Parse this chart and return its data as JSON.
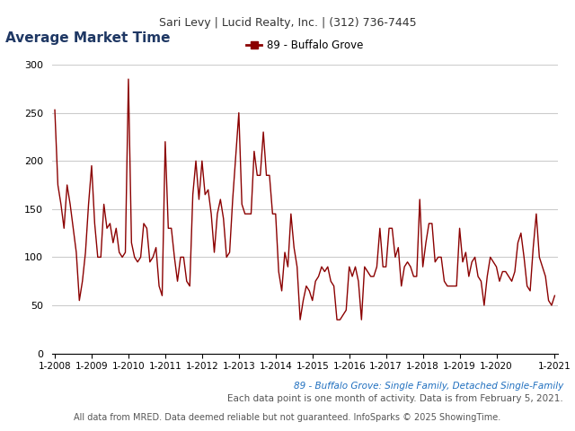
{
  "title": "Average Market Time",
  "header": "Sari Levy | Lucid Realty, Inc. | (312) 736-7445",
  "legend_label": "89 - Buffalo Grove",
  "subtitle1": "89 - Buffalo Grove: Single Family, Detached Single-Family",
  "subtitle2": "Each data point is one month of activity. Data is from February 5, 2021.",
  "footer": "All data from MRED. Data deemed reliable but not guaranteed. InfoSparks © 2025 ShowingTime.",
  "line_color": "#8B0000",
  "title_color": "#1F3864",
  "subtitle1_color": "#1F6FBF",
  "header_bg": "#E8E8E8",
  "ylim": [
    0,
    300
  ],
  "yticks": [
    0,
    50,
    100,
    150,
    200,
    250,
    300
  ],
  "xtick_labels": [
    "1-2008",
    "1-2009",
    "1-2010",
    "1-2011",
    "1-2012",
    "1-2013",
    "1-2014",
    "1-2015",
    "1-2016",
    "1-2017",
    "1-2018",
    "1-2019",
    "1-2020",
    "1-2021"
  ],
  "values": [
    253,
    175,
    155,
    130,
    175,
    155,
    130,
    105,
    55,
    75,
    105,
    155,
    195,
    135,
    100,
    100,
    155,
    130,
    135,
    115,
    130,
    105,
    100,
    105,
    285,
    115,
    100,
    95,
    100,
    135,
    130,
    95,
    100,
    110,
    70,
    60,
    220,
    130,
    130,
    100,
    75,
    100,
    100,
    75,
    70,
    165,
    200,
    160,
    200,
    165,
    170,
    145,
    105,
    145,
    160,
    140,
    100,
    105,
    160,
    205,
    250,
    155,
    145,
    145,
    145,
    210,
    185,
    185,
    230,
    185,
    185,
    145,
    145,
    85,
    65,
    105,
    90,
    145,
    110,
    90,
    35,
    55,
    70,
    65,
    55,
    75,
    80,
    90,
    85,
    90,
    75,
    70,
    35,
    35,
    40,
    45,
    90,
    80,
    90,
    75,
    35,
    90,
    85,
    80,
    80,
    90,
    130,
    90,
    90,
    130,
    130,
    100,
    110,
    70,
    90,
    95,
    90,
    80,
    80,
    160,
    90,
    115,
    135,
    135,
    95,
    100,
    100,
    75,
    70,
    70,
    70,
    70,
    130,
    95,
    105,
    80,
    95,
    100,
    80,
    75,
    50,
    80,
    100,
    95,
    90,
    75,
    85,
    85,
    80,
    75,
    85,
    115,
    125,
    100,
    70,
    65,
    110,
    145,
    100,
    90,
    80,
    55,
    50,
    60
  ]
}
